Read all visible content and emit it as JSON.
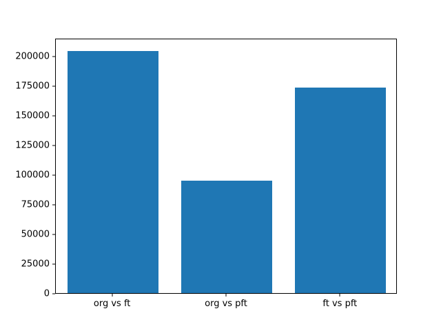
{
  "chart_data": {
    "type": "bar",
    "title": "",
    "xlabel": "",
    "ylabel": "",
    "categories": [
      "org vs ft",
      "org vs pft",
      "ft vs pft"
    ],
    "values": [
      204000,
      95000,
      173000
    ],
    "y_ticks": [
      0,
      25000,
      50000,
      75000,
      100000,
      125000,
      150000,
      175000,
      200000
    ],
    "y_tick_labels": [
      "0",
      "25000",
      "50000",
      "75000",
      "100000",
      "125000",
      "150000",
      "175000",
      "200000"
    ],
    "ylim": [
      0,
      215000
    ],
    "bar_color": "#1f77b4",
    "axis_color": "#000000",
    "background_color": "#ffffff",
    "grid": false,
    "legend": false,
    "bar_width_fraction": 0.8
  }
}
